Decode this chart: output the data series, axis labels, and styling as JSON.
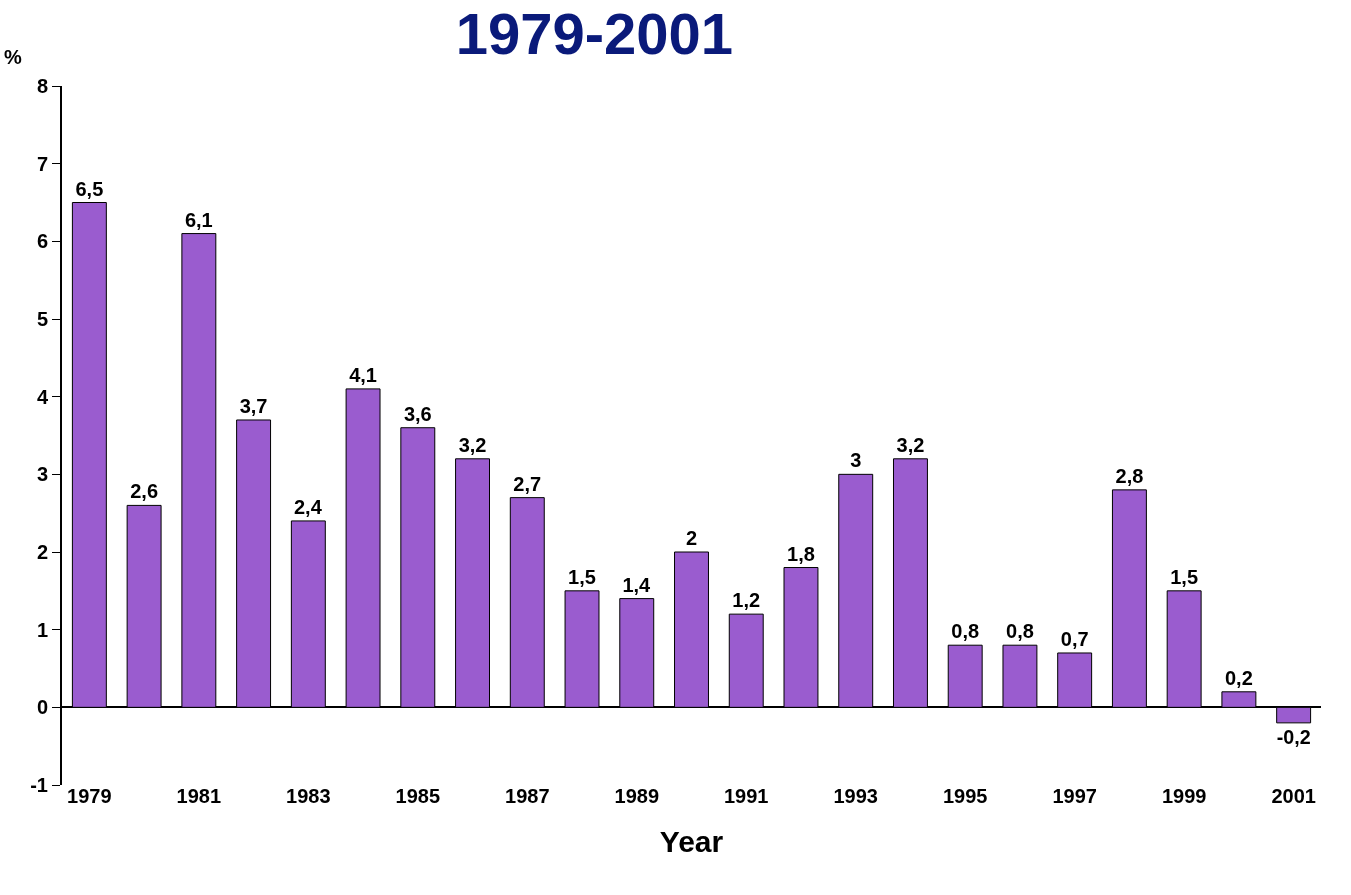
{
  "chart_data": {
    "type": "bar",
    "title": "1979-2001",
    "xlabel": "Year",
    "ylabel": "%",
    "categories": [
      "1979",
      null,
      "1981",
      null,
      "1983",
      null,
      "1985",
      null,
      "1987",
      null,
      "1989",
      null,
      "1991",
      null,
      "1993",
      null,
      "1995",
      null,
      "1997",
      null,
      "1999",
      null,
      "2001"
    ],
    "values": [
      6.5,
      2.6,
      6.1,
      3.7,
      2.4,
      4.1,
      3.6,
      3.2,
      2.7,
      1.5,
      1.4,
      2,
      1.2,
      1.8,
      3,
      3.2,
      0.8,
      0.8,
      0.7,
      2.8,
      1.5,
      0.2,
      -0.2
    ],
    "value_labels": [
      "6,5",
      "2,6",
      "6,1",
      "3,7",
      "2,4",
      "4,1",
      "3,6",
      "3,2",
      "2,7",
      "1,5",
      "1,4",
      "2",
      "1,2",
      "1,8",
      "3",
      "3,2",
      "0,8",
      "0,8",
      "0,7",
      "2,8",
      "1,5",
      "0,2",
      "-0,2"
    ],
    "color": "#9a5ccf",
    "ylim": [
      -1,
      8
    ],
    "yticks": [
      -1,
      0,
      1,
      2,
      3,
      4,
      5,
      6,
      7,
      8
    ]
  }
}
